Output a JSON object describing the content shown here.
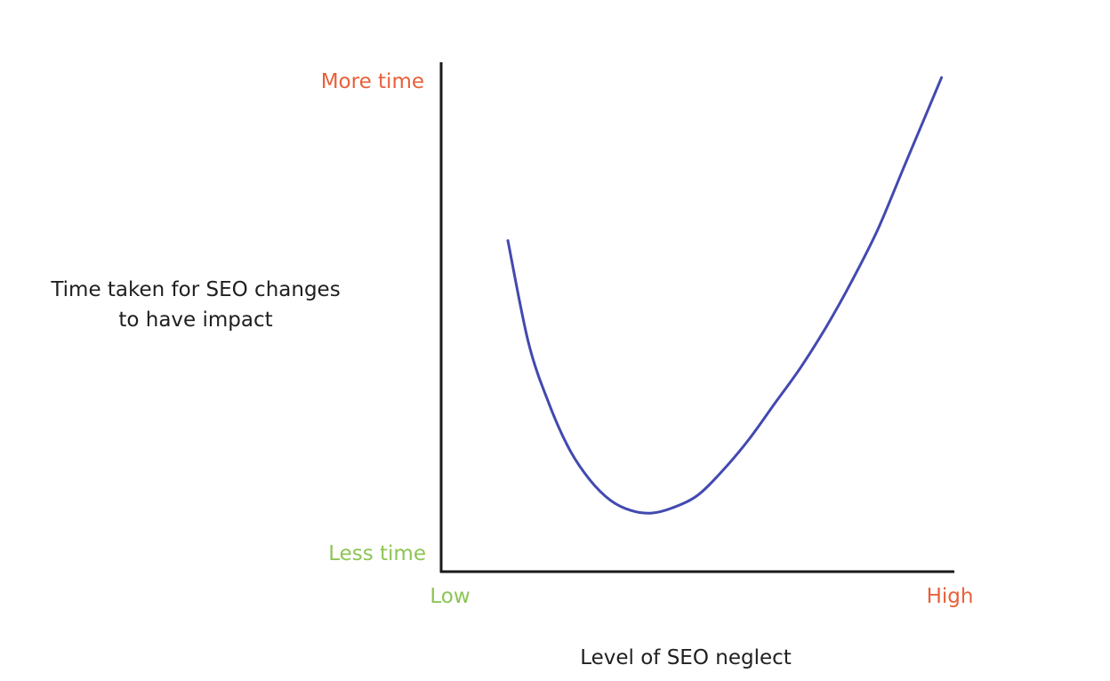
{
  "chart_data": {
    "type": "line",
    "title": "",
    "xlabel": "Level of SEO neglect",
    "ylabel_lines": [
      "Time taken for SEO changes",
      "to have impact"
    ],
    "x_tick_labels": [
      {
        "text": "Low",
        "color": "#8dc455"
      },
      {
        "text": "High",
        "color": "#e8603a"
      }
    ],
    "y_tick_labels": [
      {
        "text": "Less time",
        "color": "#8dc455"
      },
      {
        "text": "More time",
        "color": "#e8603a"
      }
    ],
    "xlim": [
      0,
      100
    ],
    "ylim": [
      0,
      100
    ],
    "grid": false,
    "series": [
      {
        "color": "#4249b0",
        "x": [
          13,
          17,
          21,
          25,
          29,
          33,
          37,
          41,
          45,
          50,
          55,
          60,
          65,
          70,
          75,
          80,
          85,
          90,
          95,
          97.5
        ],
        "y": [
          65,
          45,
          33,
          24,
          18,
          14,
          12,
          11.5,
          12.5,
          15,
          20,
          26,
          33,
          40,
          48,
          57,
          67,
          79,
          91,
          97
        ]
      }
    ],
    "axis_color": "#1a1a1a"
  }
}
